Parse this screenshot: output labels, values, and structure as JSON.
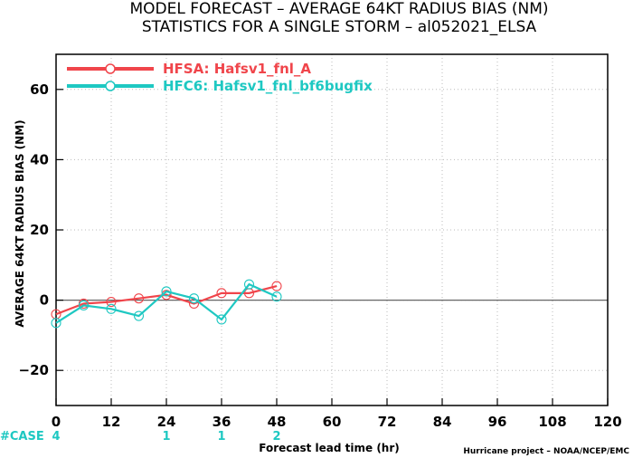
{
  "chart_data": {
    "type": "line",
    "title": "MODEL FORECAST – AVERAGE 64KT RADIUS BIAS (NM)",
    "subtitle": "STATISTICS FOR A SINGLE STORM – al052021_ELSA",
    "xlabel": "Forecast lead time (hr)",
    "ylabel": "AVERAGE 64KT RADIUS BIAS (NM)",
    "xlim": [
      0,
      120
    ],
    "ylim": [
      -30,
      70
    ],
    "x_ticks": [
      "0",
      "12",
      "24",
      "36",
      "48",
      "60",
      "72",
      "84",
      "96",
      "108",
      "120"
    ],
    "y_ticks": [
      "60",
      "40",
      "20",
      "0",
      "−20"
    ],
    "grid": true,
    "legend_position": "top-left",
    "series": [
      {
        "name": "HFSA: Hafsv1_fnl_A",
        "color": "#f0454b",
        "x": [
          0,
          6,
          12,
          18,
          24,
          30,
          36,
          42,
          48
        ],
        "y": [
          -4,
          -1,
          -0.5,
          0.5,
          1.5,
          -1,
          2,
          2,
          4
        ]
      },
      {
        "name": "HFC6: Hafsv1_fnl_bf6bugfix",
        "color": "#1ec8c2",
        "x": [
          0,
          6,
          12,
          18,
          24,
          30,
          36,
          42,
          48
        ],
        "y": [
          -6.5,
          -1.5,
          -2.5,
          -4.5,
          2.5,
          0.5,
          -5.5,
          4.5,
          1
        ]
      }
    ],
    "case_label": "#CASE",
    "case_counts": [
      {
        "x": 0,
        "label": "4"
      },
      {
        "x": 24,
        "label": "1"
      },
      {
        "x": 36,
        "label": "1"
      },
      {
        "x": 48,
        "label": "2"
      }
    ],
    "case_color": "#1ec8c2",
    "credit": "Hurricane project – NOAA/NCEP/EMC"
  }
}
